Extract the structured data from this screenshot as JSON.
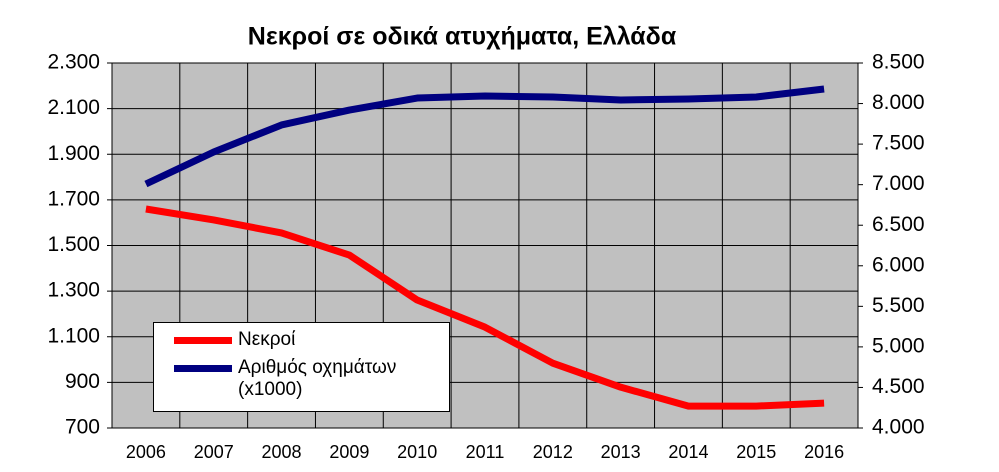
{
  "chart_data": {
    "type": "line",
    "title": "Νεκροί σε οδικά ατυχήματα, Ελλάδα",
    "categories": [
      "2006",
      "2007",
      "2008",
      "2009",
      "2010",
      "2011",
      "2012",
      "2013",
      "2014",
      "2015",
      "2016"
    ],
    "series": [
      {
        "name": "Νεκροί",
        "color": "#ff0000",
        "values": [
          1660,
          1612,
          1555,
          1458,
          1261,
          1142,
          984,
          879,
          796,
          796,
          809
        ]
      },
      {
        "name": "Αριθμός οχημάτων (x1000)",
        "color": "#000080",
        "axis": "y2",
        "values": [
          7008,
          7403,
          7736,
          7920,
          8068,
          8093,
          8081,
          8044,
          8056,
          8081,
          8179
        ]
      }
    ],
    "ylim": [
      700,
      2300
    ],
    "yticks": [
      {
        "value": 700,
        "label": "700"
      },
      {
        "value": 900,
        "label": "900"
      },
      {
        "value": 1100,
        "label": "1.100"
      },
      {
        "value": 1300,
        "label": "1.300"
      },
      {
        "value": 1500,
        "label": "1.500"
      },
      {
        "value": 1700,
        "label": "1.700"
      },
      {
        "value": 1900,
        "label": "1.900"
      },
      {
        "value": 2100,
        "label": "2.100"
      },
      {
        "value": 2300,
        "label": "2.300"
      }
    ],
    "y2lim": [
      4000,
      8500
    ],
    "y2ticks": [
      {
        "value": 4000,
        "label": "4.000"
      },
      {
        "value": 4500,
        "label": "4.500"
      },
      {
        "value": 5000,
        "label": "5.000"
      },
      {
        "value": 5500,
        "label": "5.500"
      },
      {
        "value": 6000,
        "label": "6.000"
      },
      {
        "value": 6500,
        "label": "6.500"
      },
      {
        "value": 7000,
        "label": "7.000"
      },
      {
        "value": 7500,
        "label": "7.500"
      },
      {
        "value": 8000,
        "label": "8.000"
      },
      {
        "value": 8500,
        "label": "8.500"
      }
    ],
    "grid": true,
    "legend": "lower-left"
  }
}
